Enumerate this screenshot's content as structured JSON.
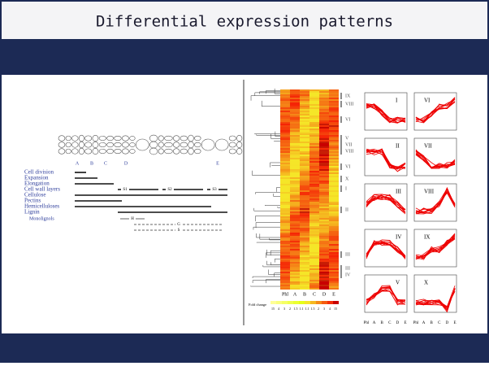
{
  "header": {
    "title": "Differential expression patterns"
  },
  "diagram": {
    "zones": [
      "A",
      "B",
      "C",
      "D",
      "E"
    ],
    "processes": [
      "Cell division",
      "Expansion",
      "Elongation",
      "Cell wall layers",
      "Cellulose",
      "Pectins",
      "Hemicelluloses",
      "Lignin"
    ],
    "sublabel": "Monolignols",
    "wall_layers": [
      "S1",
      "S2",
      "S3"
    ],
    "lignin_units": [
      "H",
      "G",
      "S"
    ]
  },
  "heatmap": {
    "columns": [
      "Phl",
      "A",
      "B",
      "C",
      "D",
      "E"
    ],
    "clusters": [
      "IX",
      "VIII",
      "VI",
      "V",
      "VII",
      "VIII",
      "VI",
      "X",
      "I",
      "II",
      "III",
      "III",
      "IV"
    ],
    "legend_title": "Fold change",
    "scale": [
      "15",
      "4",
      "3",
      "2",
      "1.5",
      "1.1",
      "1.1",
      "1.5",
      "2",
      "3",
      "4",
      "15"
    ]
  },
  "profiles": {
    "panels": [
      "I",
      "VI",
      "II",
      "VII",
      "III",
      "VIII",
      "IV",
      "IX",
      "V",
      "X"
    ],
    "x_labels": [
      "Phl",
      "A",
      "B",
      "C",
      "D",
      "E"
    ]
  }
}
